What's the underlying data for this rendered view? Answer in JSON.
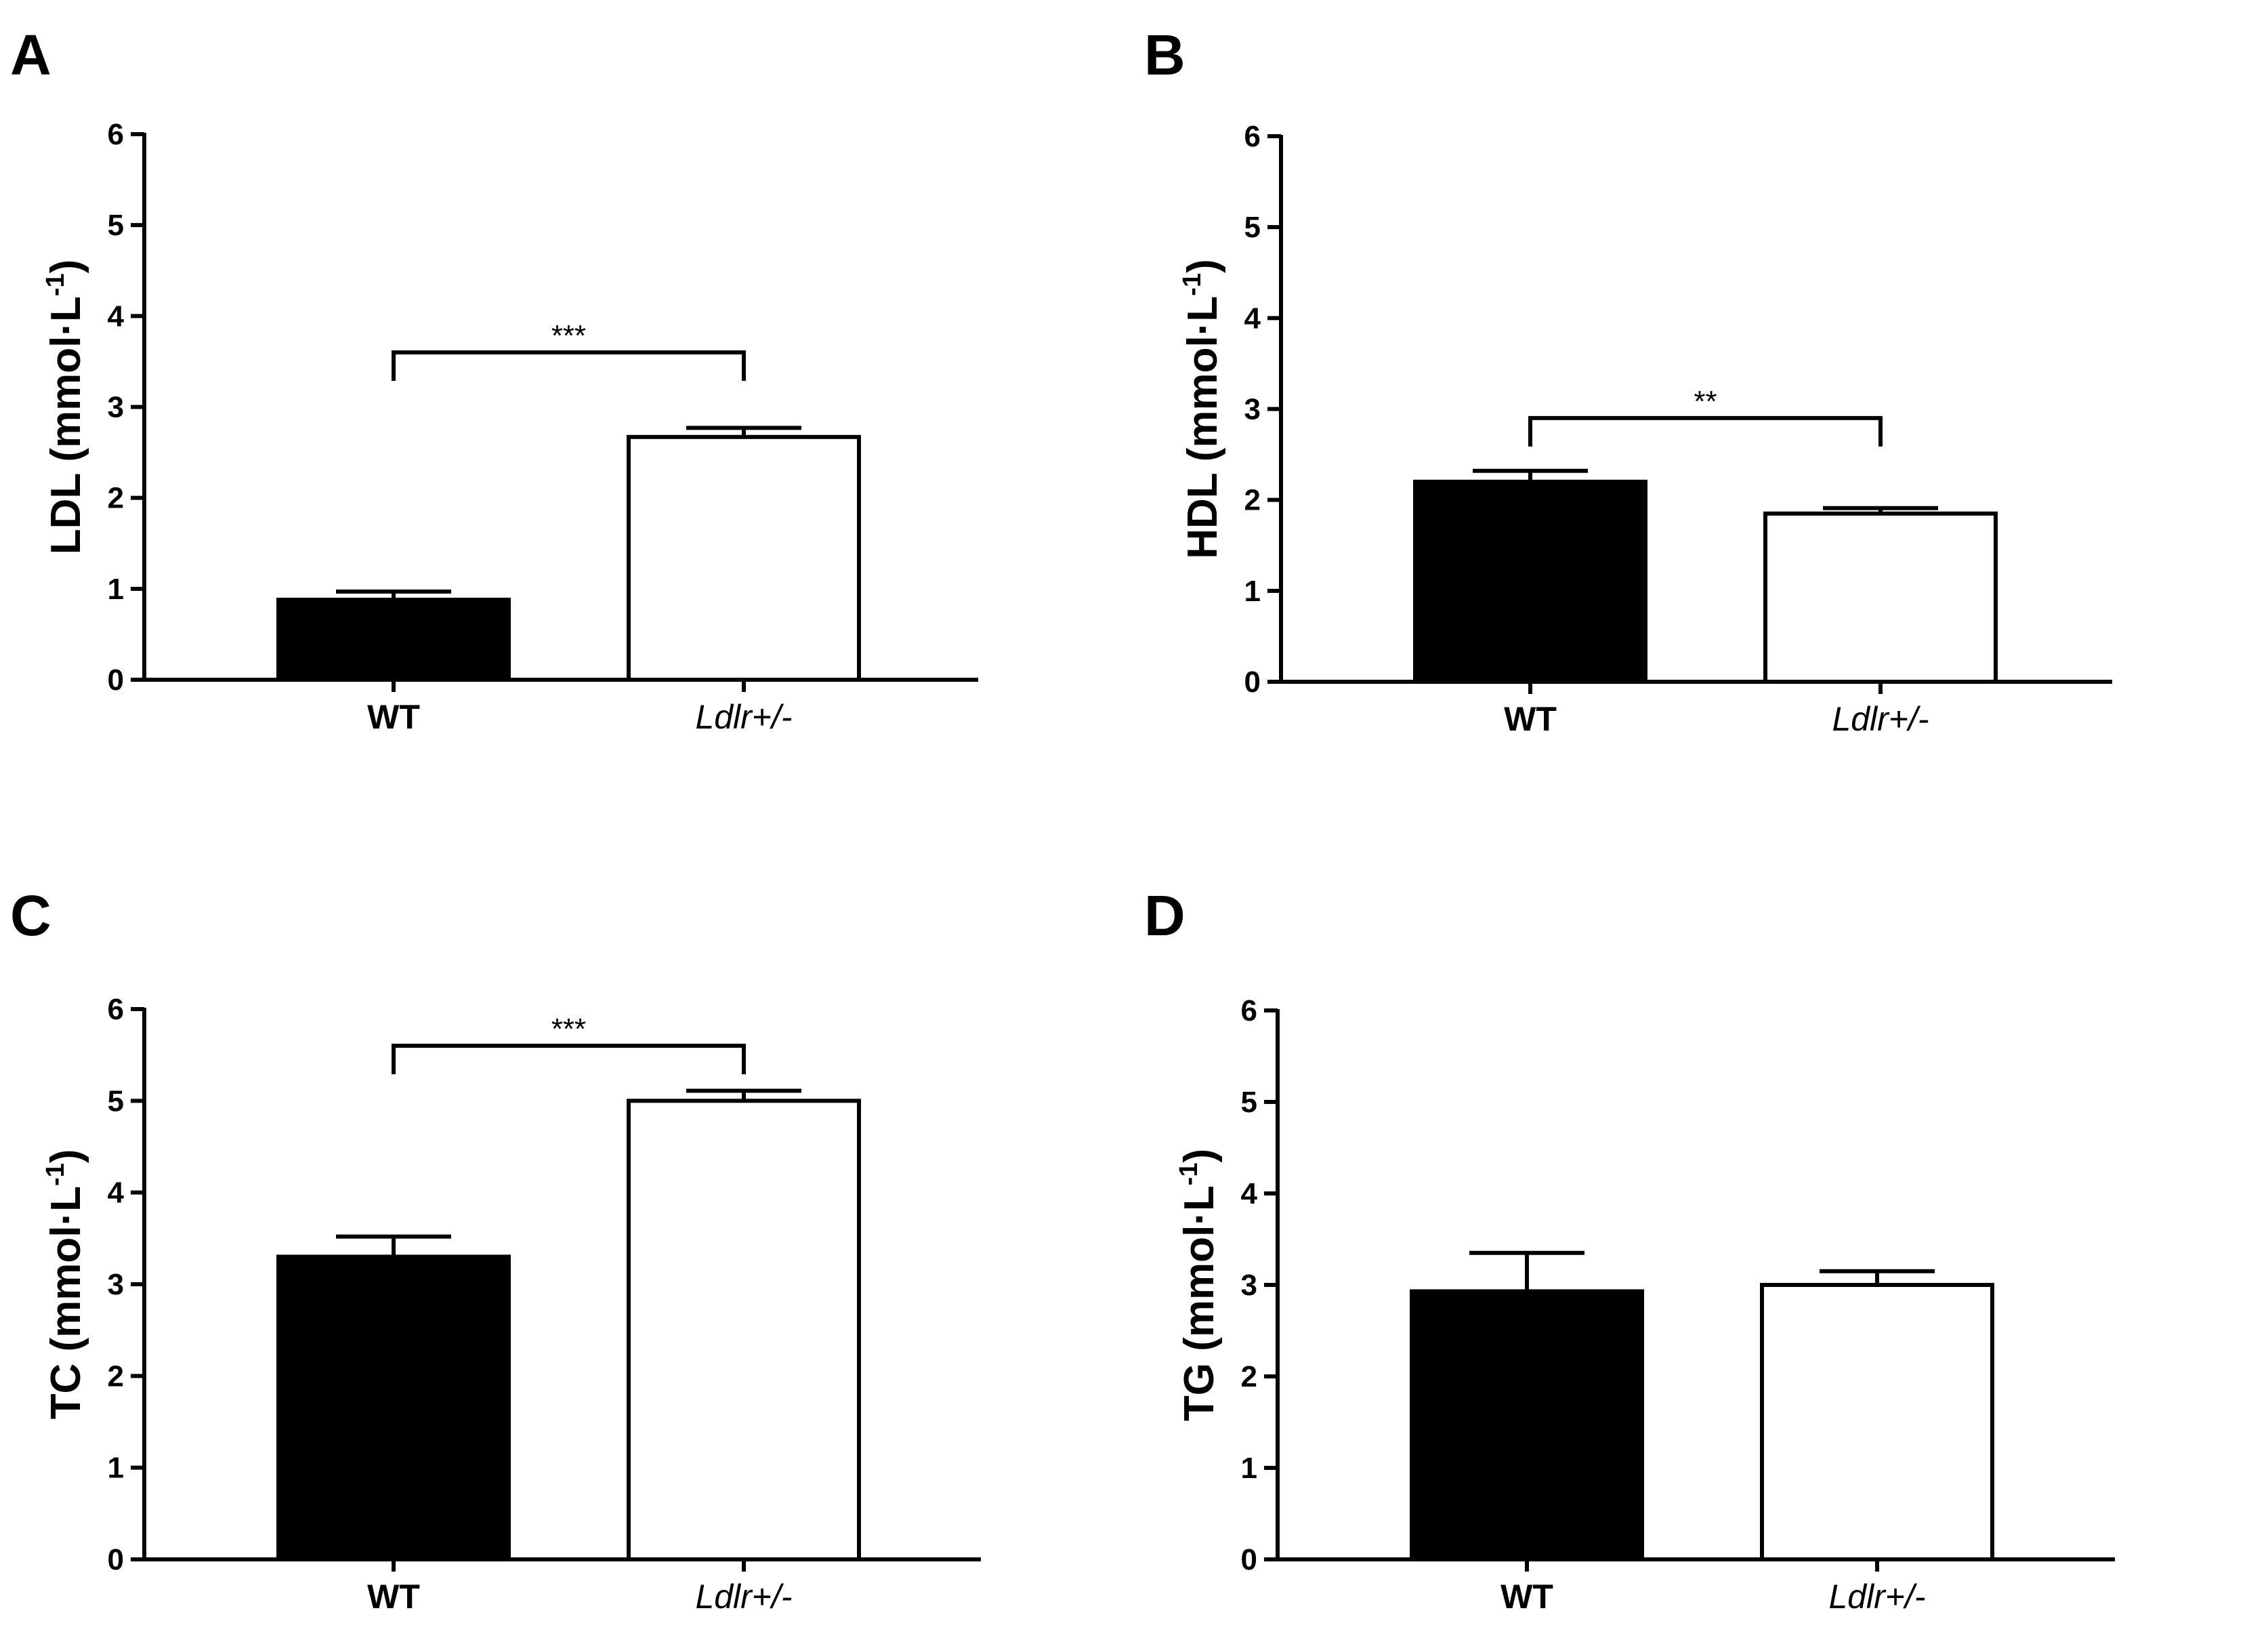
{
  "figure": {
    "panel_letters": [
      "A",
      "B",
      "C",
      "D"
    ],
    "colors": {
      "wt_fill": "#000000",
      "ldlr_fill": "#ffffff",
      "stroke": "#000000"
    }
  },
  "chart_data": [
    {
      "type": "bar",
      "panel": "A",
      "title": "",
      "ylabel": {
        "main": "LDL (mmol·L",
        "superscript": "-1",
        "close": ")"
      },
      "xlabel": "",
      "ylim": [
        0,
        6
      ],
      "yticks": [
        "0",
        "1",
        "2",
        "3",
        "4",
        "5",
        "6"
      ],
      "categories": [
        "WT",
        "Ldlr+/-"
      ],
      "values": [
        0.88,
        2.67
      ],
      "errors": [
        0.09,
        0.1
      ],
      "significance": {
        "between": [
          0,
          1
        ],
        "label": "***",
        "level": 3.6
      }
    },
    {
      "type": "bar",
      "panel": "B",
      "title": "",
      "ylabel": {
        "main": "HDL (mmol·L",
        "superscript": "-1",
        "close": ")"
      },
      "xlabel": "",
      "ylim": [
        0,
        6
      ],
      "yticks": [
        "0",
        "1",
        "2",
        "3",
        "4",
        "5",
        "6"
      ],
      "categories": [
        "WT",
        "Ldlr+/-"
      ],
      "values": [
        2.2,
        1.85
      ],
      "errors": [
        0.12,
        0.06
      ],
      "significance": {
        "between": [
          0,
          1
        ],
        "label": "**",
        "level": 2.9
      }
    },
    {
      "type": "bar",
      "panel": "C",
      "title": "",
      "ylabel": {
        "main": "TC (mmol·L",
        "superscript": "-1",
        "close": ")"
      },
      "xlabel": "",
      "ylim": [
        0,
        6
      ],
      "yticks": [
        "0",
        "1",
        "2",
        "3",
        "4",
        "5",
        "6"
      ],
      "categories": [
        "WT",
        "Ldlr+/-"
      ],
      "values": [
        3.3,
        5.0
      ],
      "errors": [
        0.22,
        0.11
      ],
      "significance": {
        "between": [
          0,
          1
        ],
        "label": "***",
        "level": 5.6
      }
    },
    {
      "type": "bar",
      "panel": "D",
      "title": "",
      "ylabel": {
        "main": "TG (mmol·L",
        "superscript": "-1",
        "close": ")"
      },
      "xlabel": "",
      "ylim": [
        0,
        6
      ],
      "yticks": [
        "0",
        "1",
        "2",
        "3",
        "4",
        "5",
        "6"
      ],
      "categories": [
        "WT",
        "Ldlr+/-"
      ],
      "values": [
        2.93,
        3.0
      ],
      "errors": [
        0.42,
        0.15
      ],
      "significance": null
    }
  ]
}
